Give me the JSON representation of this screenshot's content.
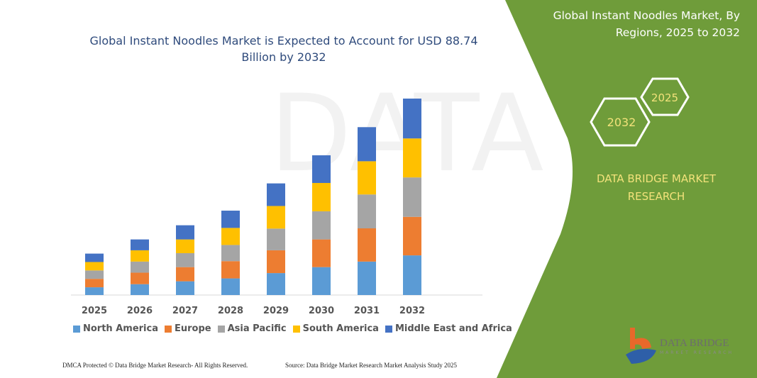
{
  "header": {
    "title": "Global Instant Noodles Market is Expected to Account for USD 88.74 Billion by 2032"
  },
  "side_panel": {
    "title": "Global Instant Noodles Market, By Regions, 2025 to 2032",
    "hex_labels": [
      "2025",
      "2032"
    ],
    "brand": "DATA BRIDGE MARKET RESEARCH",
    "logo_text": "DATA BRIDGE",
    "logo_sub": "MARKET RESEARCH",
    "panel_color": "#6f9c3a"
  },
  "footer": {
    "left": "DMCA Protected © Data Bridge Market Research- All Rights Reserved.",
    "right": "Source: Data Bridge Market Research Market Analysis Study 2025"
  },
  "chart_data": {
    "type": "bar",
    "stacked": true,
    "title": "Global Instant Noodles Market is Expected to Account for USD 88.74 Billion by 2032",
    "categories": [
      "2025",
      "2026",
      "2027",
      "2028",
      "2029",
      "2030",
      "2031",
      "2032"
    ],
    "series": [
      {
        "name": "North America",
        "color": "#5b9bd5",
        "values": [
          3.5,
          4.9,
          6.2,
          7.5,
          9.9,
          12.6,
          15.1,
          17.9
        ]
      },
      {
        "name": "Europe",
        "color": "#ed7d31",
        "values": [
          3.8,
          5.2,
          6.4,
          7.8,
          10.3,
          12.5,
          15.0,
          17.4
        ]
      },
      {
        "name": "Asia Pacific",
        "color": "#a5a5a5",
        "values": [
          3.8,
          5.0,
          6.3,
          7.3,
          9.8,
          12.7,
          15.3,
          17.8
        ]
      },
      {
        "name": "South America",
        "color": "#ffc000",
        "values": [
          3.8,
          5.1,
          6.2,
          7.7,
          10.2,
          12.8,
          15.0,
          17.6
        ]
      },
      {
        "name": "Middle East and Africa",
        "color": "#4472c4",
        "values": [
          3.8,
          4.9,
          6.4,
          7.8,
          10.2,
          12.5,
          15.4,
          18.0
        ]
      }
    ],
    "ylim": [
      0,
      90
    ],
    "y_axis_shown": false,
    "grid": false,
    "legend_position": "bottom"
  }
}
